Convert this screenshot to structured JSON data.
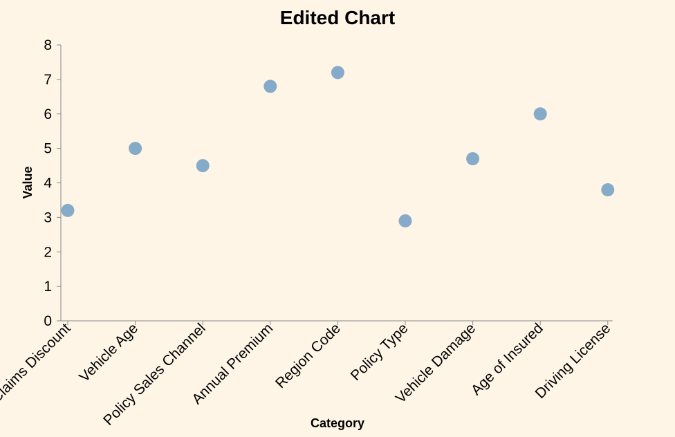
{
  "chart_data": {
    "type": "scatter",
    "title": "Edited Chart",
    "xlabel": "Category",
    "ylabel": "Value",
    "ylim": [
      0,
      8
    ],
    "yticks": [
      0,
      1,
      2,
      3,
      4,
      5,
      6,
      7,
      8
    ],
    "grid": false,
    "point_color": "#7fa6c7",
    "background_color": "#fef5e7",
    "categories": [
      "No Claims Discount",
      "Vehicle Age",
      "Policy Sales Channel",
      "Annual Premium",
      "Region Code",
      "Policy Type",
      "Vehicle Damage",
      "Age of Insured",
      "Driving License"
    ],
    "values": [
      3.2,
      5.0,
      4.5,
      6.8,
      7.2,
      2.9,
      4.7,
      6.0,
      3.8
    ]
  }
}
